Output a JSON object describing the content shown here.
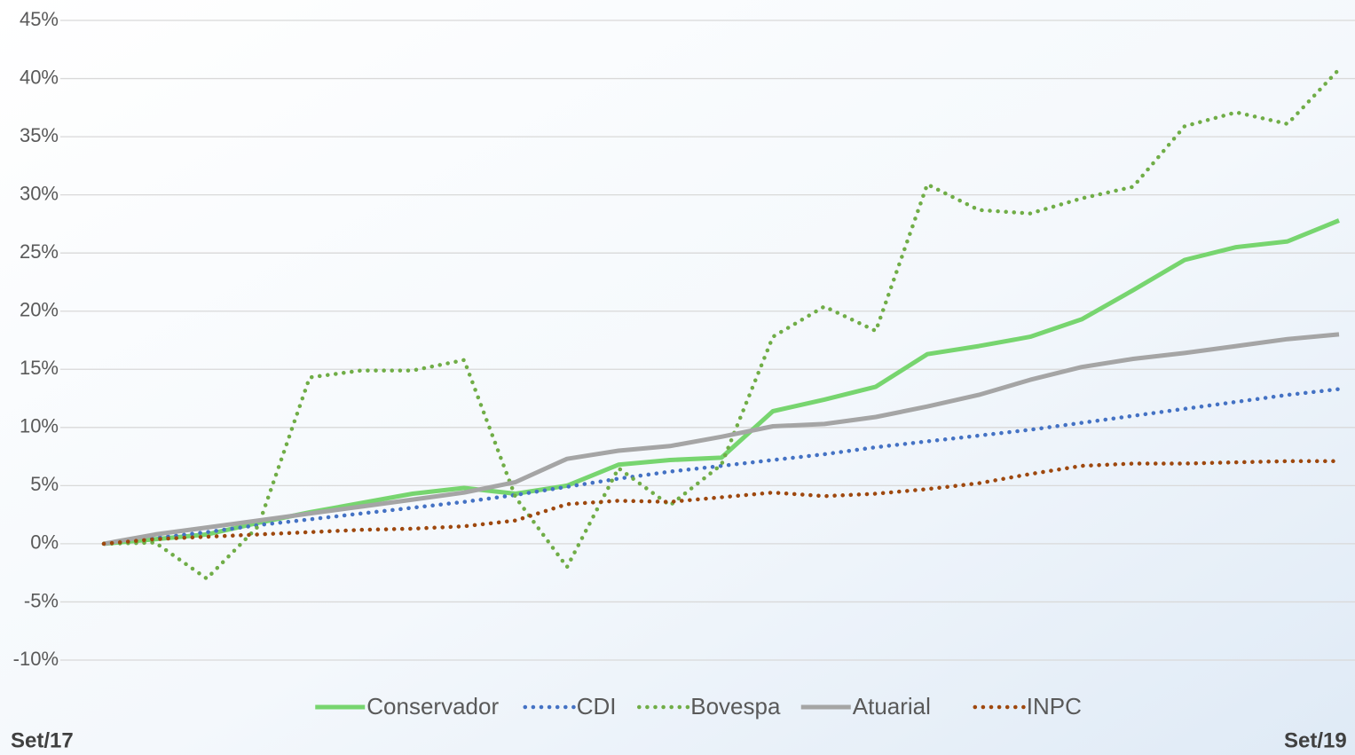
{
  "chart_data": {
    "type": "line",
    "categories": [
      "Set/17",
      null,
      null,
      null,
      null,
      null,
      null,
      null,
      null,
      null,
      null,
      null,
      null,
      null,
      null,
      null,
      null,
      null,
      null,
      null,
      null,
      null,
      null,
      null,
      "Set/19"
    ],
    "series": [
      {
        "name": "Conservador",
        "color": "#77d56f",
        "style": "solid",
        "values": [
          0,
          0.4,
          0.8,
          1.8,
          2.7,
          3.5,
          4.3,
          4.8,
          4.3,
          5.0,
          6.8,
          7.2,
          7.4,
          11.4,
          12.4,
          13.5,
          16.3,
          17.0,
          17.8,
          19.3,
          21.8,
          24.4,
          25.5,
          26.0,
          27.8
        ]
      },
      {
        "name": "CDI",
        "color": "#4472c4",
        "style": "dotted",
        "values": [
          0,
          0.5,
          1.0,
          1.6,
          2.1,
          2.6,
          3.1,
          3.6,
          4.2,
          4.9,
          5.6,
          6.2,
          6.7,
          7.2,
          7.7,
          8.3,
          8.8,
          9.3,
          9.8,
          10.4,
          11.0,
          11.6,
          12.2,
          12.8,
          13.3
        ]
      },
      {
        "name": "Bovespa",
        "color": "#70ad47",
        "style": "dotted",
        "values": [
          0,
          0.1,
          -3.0,
          1.5,
          14.3,
          14.9,
          14.9,
          15.8,
          4.0,
          -2.0,
          6.5,
          3.3,
          6.8,
          17.8,
          20.4,
          18.3,
          30.9,
          28.7,
          28.4,
          29.7,
          30.7,
          35.9,
          37.1,
          36.1,
          40.8
        ]
      },
      {
        "name": "Atuarial",
        "color": "#a5a5a5",
        "style": "solid",
        "values": [
          0,
          0.8,
          1.4,
          2.0,
          2.6,
          3.2,
          3.8,
          4.4,
          5.3,
          7.3,
          8.0,
          8.4,
          9.2,
          10.1,
          10.3,
          10.9,
          11.8,
          12.8,
          14.1,
          15.2,
          15.9,
          16.4,
          17.0,
          17.6,
          18.0
        ]
      },
      {
        "name": "INPC",
        "color": "#9e480e",
        "style": "dotted",
        "values": [
          0,
          0.4,
          0.6,
          0.8,
          1.0,
          1.2,
          1.3,
          1.5,
          2.0,
          3.4,
          3.7,
          3.6,
          4.0,
          4.4,
          4.1,
          4.3,
          4.7,
          5.2,
          6.0,
          6.7,
          6.9,
          6.9,
          7.0,
          7.1,
          7.1
        ]
      }
    ],
    "ylim": [
      -10,
      45
    ],
    "yticks": [
      {
        "value": -10,
        "label": "-10%"
      },
      {
        "value": -5,
        "label": "-5%"
      },
      {
        "value": 0,
        "label": "0%"
      },
      {
        "value": 5,
        "label": "5%"
      },
      {
        "value": 10,
        "label": "10%"
      },
      {
        "value": 15,
        "label": "15%"
      },
      {
        "value": 20,
        "label": "20%"
      },
      {
        "value": 25,
        "label": "25%"
      },
      {
        "value": 30,
        "label": "30%"
      },
      {
        "value": 35,
        "label": "35%"
      },
      {
        "value": 40,
        "label": "40%"
      },
      {
        "value": 45,
        "label": "45%"
      }
    ],
    "grid": true,
    "legend": "bottom"
  }
}
